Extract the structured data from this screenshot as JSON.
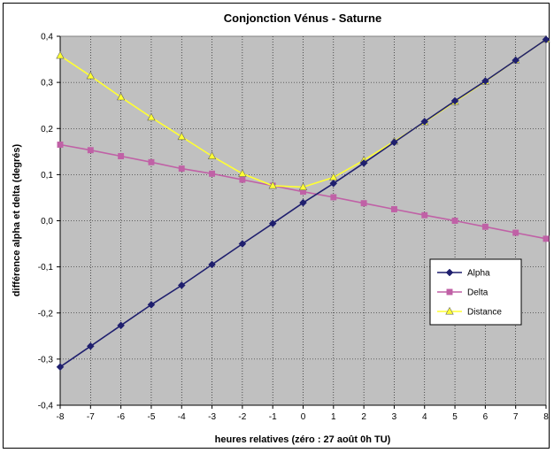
{
  "chart_data": {
    "type": "line",
    "title": "Conjonction Vénus - Saturne",
    "xlabel": "heures relatives (zéro : 27 août 0h TU)",
    "ylabel": "différence alpha et delta (degrés)",
    "x": [
      -8,
      -7,
      -6,
      -5,
      -4,
      -3,
      -2,
      -1,
      0,
      1,
      2,
      3,
      4,
      5,
      6,
      7,
      8
    ],
    "xlim": [
      -8,
      8
    ],
    "ylim": [
      -0.4,
      0.4
    ],
    "yticks": [
      "-0,4",
      "-0,3",
      "-0,2",
      "-0,1",
      "0,0",
      "0,1",
      "0,2",
      "0,3",
      "0,4"
    ],
    "xticks": [
      "-8",
      "-7",
      "-6",
      "-5",
      "-4",
      "-3",
      "-2",
      "-1",
      "0",
      "1",
      "2",
      "3",
      "4",
      "5",
      "6",
      "7",
      "8"
    ],
    "grid": true,
    "legend_position": "bottom-right",
    "plot_background": "#c0c0c0",
    "series": [
      {
        "name": "Alpha",
        "color": "#1f1f6e",
        "marker": "diamond",
        "values": [
          -0.317,
          -0.272,
          -0.227,
          -0.182,
          -0.14,
          -0.095,
          -0.05,
          -0.006,
          0.039,
          0.081,
          0.125,
          0.17,
          0.215,
          0.26,
          0.303,
          0.348,
          0.393
        ]
      },
      {
        "name": "Delta",
        "color": "#c061a6",
        "marker": "square",
        "values": [
          0.165,
          0.153,
          0.14,
          0.127,
          0.113,
          0.102,
          0.089,
          0.076,
          0.063,
          0.051,
          0.038,
          0.025,
          0.012,
          0.0,
          -0.013,
          -0.026,
          -0.039
        ]
      },
      {
        "name": "Distance",
        "color": "#ffff33",
        "marker": "triangle",
        "values": [
          0.358,
          0.314,
          0.268,
          0.224,
          0.182,
          0.14,
          0.102,
          0.076,
          0.073,
          0.094,
          0.131,
          0.172,
          0.214,
          0.258,
          0.302,
          0.348,
          0.393
        ]
      }
    ]
  }
}
